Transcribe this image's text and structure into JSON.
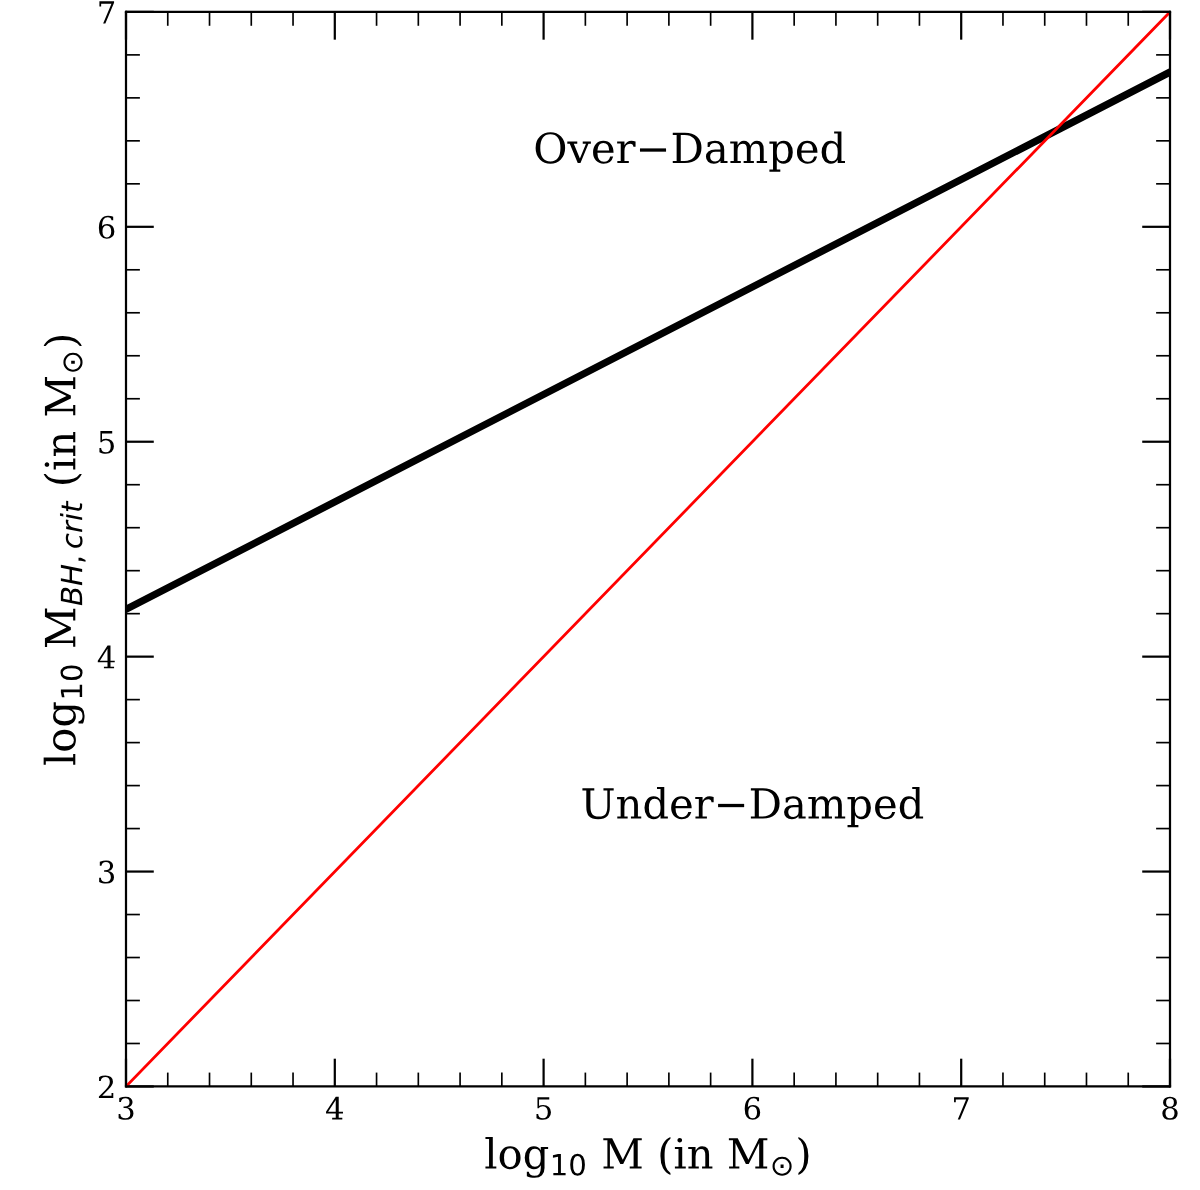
{
  "chart_data": {
    "type": "line",
    "xlabel": "log$_{10}$ M (in M$_{⊙}$)",
    "ylabel": "log$_{10}$ M$_{BH,crit}$ (in M$_{⊙}$)",
    "x": [
      3,
      8
    ],
    "series": [
      {
        "color": "#000000",
        "values": [
          4.22,
          6.72
        ]
      },
      {
        "color": "#ff0000",
        "values": [
          2,
          7
        ]
      }
    ],
    "xlim": [
      3,
      8
    ],
    "ylim": [
      2,
      7
    ],
    "xticks": [
      3,
      4,
      5,
      6,
      7,
      8
    ],
    "yticks": [
      2,
      3,
      4,
      5,
      6,
      7
    ],
    "grid": false,
    "legend": false,
    "marker": "none",
    "line_style": "solid",
    "annotations": [
      "Over−Damped",
      "Under−Damped"
    ]
  }
}
